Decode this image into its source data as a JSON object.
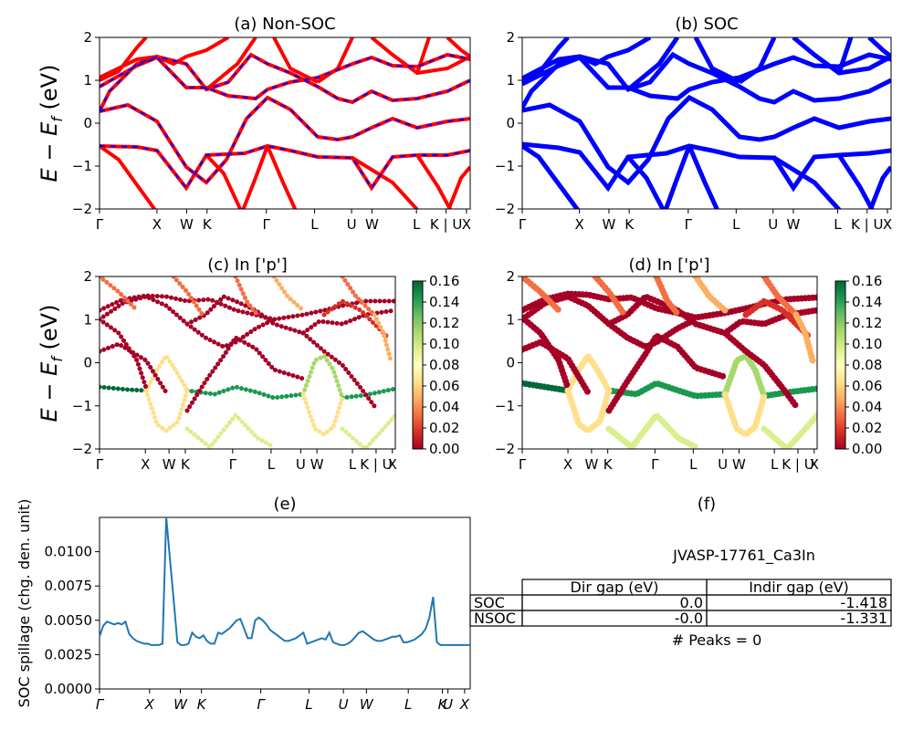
{
  "colors": {
    "nsoc_line": "#ff0000",
    "soc_line": "#0000ff",
    "spillage_line": "#1f77b4"
  },
  "chart_data": [
    {
      "id": "a",
      "type": "line",
      "title": "(a) Non-SOC",
      "ylabel_main": "E − E",
      "ylabel_sub": "f",
      "ylabel_unit": " (eV)",
      "ylim": [
        -2,
        2
      ],
      "yticks": [
        "2",
        "1",
        "0",
        "−1",
        "−2"
      ],
      "kpoints": [
        "Γ",
        "X",
        "W",
        "K",
        "Γ",
        "L",
        "U",
        "W",
        "L",
        "K | U",
        "X"
      ],
      "series_styles": [
        "red solid",
        "blue dashed overlay"
      ]
    },
    {
      "id": "b",
      "type": "line",
      "title": "(b) SOC",
      "ylim": [
        -2,
        2
      ],
      "yticks": [
        "2",
        "1",
        "0",
        "−1",
        "−2"
      ],
      "kpoints": [
        "Γ",
        "X",
        "W",
        "K",
        "Γ",
        "L",
        "U",
        "W",
        "L",
        "K | U",
        "X"
      ]
    },
    {
      "id": "c",
      "type": "scatter",
      "title": "(c)  In ['p']",
      "ylim": [
        -2,
        2
      ],
      "yticks": [
        "2",
        "1",
        "0",
        "−1",
        "−2"
      ],
      "kpoints": [
        "Γ",
        "X",
        "W",
        "K",
        "Γ",
        "L",
        "U",
        "W",
        "L",
        "K | U",
        "X"
      ],
      "colorbar": {
        "min": 0.0,
        "max": 0.16,
        "ticks": [
          "0.16",
          "0.14",
          "0.12",
          "0.10",
          "0.08",
          "0.06",
          "0.04",
          "0.02",
          "0.00"
        ]
      }
    },
    {
      "id": "d",
      "type": "scatter",
      "title": "(d) In ['p']",
      "ylim": [
        -2,
        2
      ],
      "yticks": [
        "2",
        "1",
        "0",
        "−1",
        "−2"
      ],
      "kpoints": [
        "Γ",
        "X",
        "W",
        "K",
        "Γ",
        "L",
        "U",
        "W",
        "L",
        "K | U",
        "X"
      ],
      "colorbar": {
        "min": 0.0,
        "max": 0.16,
        "ticks": [
          "0.16",
          "0.14",
          "0.12",
          "0.10",
          "0.08",
          "0.06",
          "0.04",
          "0.02",
          "0.00"
        ]
      }
    },
    {
      "id": "e",
      "type": "line",
      "title": "(e)",
      "ylabel": "SOC spillage (chg. den. unit)",
      "ylim": [
        0,
        0.0125
      ],
      "yticks": [
        "0.0100",
        "0.0075",
        "0.0050",
        "0.0025",
        "0.0000"
      ],
      "xticks": [
        "Γ",
        "X",
        "W",
        "K",
        "Γ",
        "L",
        "U",
        "W",
        "L",
        "K",
        "U",
        "X"
      ],
      "x": [
        0,
        1,
        2,
        3,
        4,
        5,
        6,
        7,
        8,
        9,
        10,
        11,
        12,
        13,
        14,
        15,
        16,
        17,
        18,
        19,
        20,
        21,
        22,
        23,
        24,
        25,
        26,
        27,
        28,
        29,
        30,
        31,
        32,
        33,
        34,
        35,
        36,
        37,
        38,
        39,
        40,
        41,
        42,
        43,
        44,
        45,
        46,
        47,
        48,
        49,
        50,
        51,
        52,
        53,
        54,
        55,
        56,
        57,
        58,
        59,
        60,
        61,
        62,
        63,
        64,
        65,
        66,
        67,
        68,
        69,
        70,
        71,
        72,
        73,
        74,
        75,
        76,
        77,
        78,
        79,
        80,
        81,
        82,
        83,
        84,
        85,
        86,
        87,
        88,
        89,
        90,
        91,
        92,
        93,
        94,
        95,
        96,
        97,
        98,
        99,
        100
      ],
      "values": [
        0.0038,
        0.0046,
        0.0049,
        0.0048,
        0.0047,
        0.0048,
        0.0047,
        0.0049,
        0.004,
        0.0037,
        0.0035,
        0.0034,
        0.0033,
        0.0033,
        0.0032,
        0.0032,
        0.0032,
        0.0033,
        0.0125,
        0.0095,
        0.0065,
        0.0034,
        0.0032,
        0.0032,
        0.0033,
        0.0041,
        0.0038,
        0.0037,
        0.0039,
        0.0035,
        0.0033,
        0.0033,
        0.0041,
        0.004,
        0.0042,
        0.0044,
        0.0047,
        0.005,
        0.0051,
        0.0044,
        0.0037,
        0.0037,
        0.005,
        0.0052,
        0.005,
        0.0047,
        0.0043,
        0.0041,
        0.0039,
        0.0037,
        0.0035,
        0.0035,
        0.0036,
        0.0037,
        0.0039,
        0.0041,
        0.0033,
        0.0034,
        0.0035,
        0.0036,
        0.0037,
        0.0036,
        0.0041,
        0.0034,
        0.0033,
        0.0032,
        0.0032,
        0.0033,
        0.0035,
        0.0038,
        0.0041,
        0.0042,
        0.004,
        0.0038,
        0.0036,
        0.0035,
        0.0035,
        0.0036,
        0.0037,
        0.0038,
        0.0038,
        0.0039,
        0.0034,
        0.0034,
        0.0035,
        0.0036,
        0.0038,
        0.004,
        0.0044,
        0.0052,
        0.0067,
        0.0034,
        0.0032,
        0.0032,
        0.0032,
        0.0032,
        0.0032,
        0.0032,
        0.0032,
        0.0032,
        0.0032
      ]
    },
    {
      "id": "f",
      "type": "table",
      "title": "(f)",
      "material": "JVASP-17761_Ca3In",
      "headers": [
        "Dir gap (eV)",
        "Indir gap (eV)"
      ],
      "rows": [
        {
          "label": "SOC",
          "dir_gap": "0.0",
          "indir_gap": "-1.418"
        },
        {
          "label": "NSOC",
          "dir_gap": "-0.0",
          "indir_gap": "-1.331"
        }
      ],
      "peaks_text": "# Peaks = 0"
    }
  ]
}
